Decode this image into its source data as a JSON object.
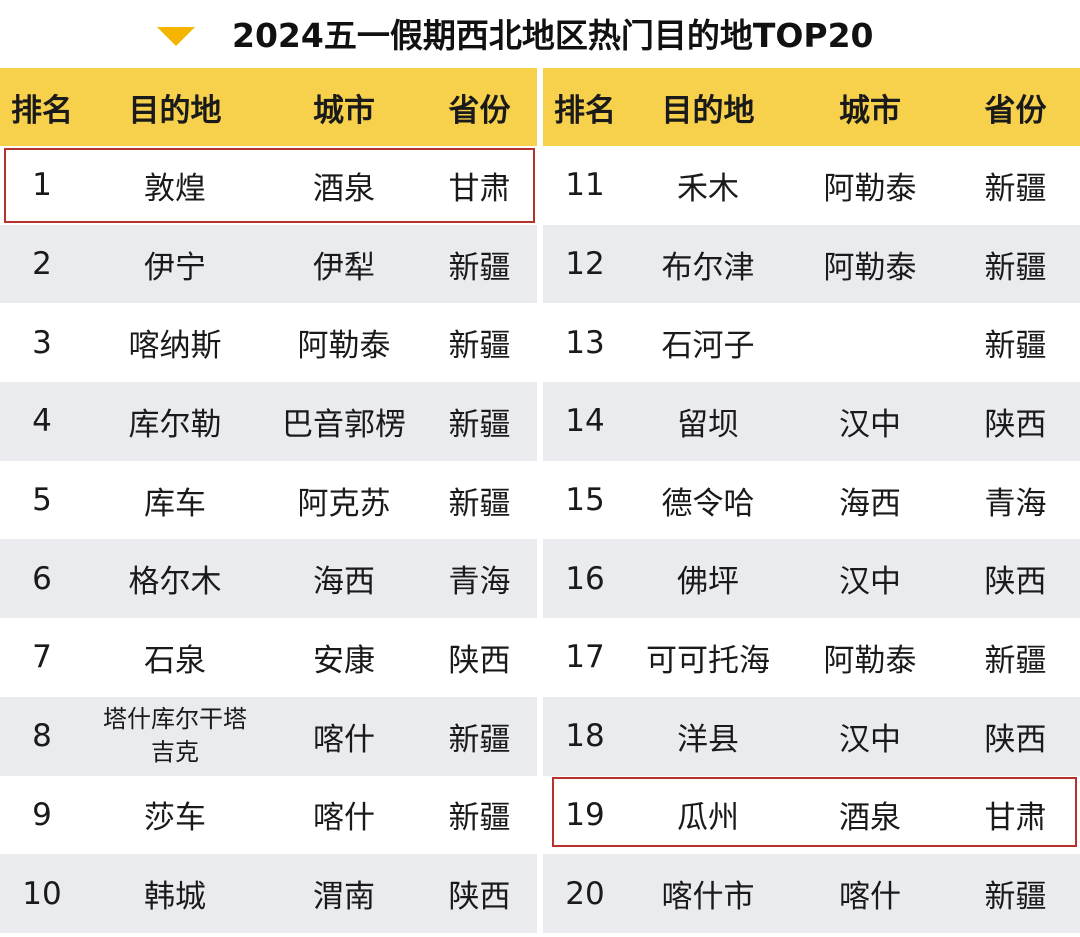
{
  "title": "2024五一假期西北地区热门目的地TOP20",
  "accent_color": "#f7d14c",
  "arrow_color": "#f4b400",
  "highlight_color": "#b5332b",
  "headers": {
    "rank": "排名",
    "destination": "目的地",
    "city": "城市",
    "province": "省份"
  },
  "left_rows": [
    {
      "rank": "1",
      "destination": "敦煌",
      "city": "酒泉",
      "province": "甘肃",
      "highlighted": true
    },
    {
      "rank": "2",
      "destination": "伊宁",
      "city": "伊犁",
      "province": "新疆"
    },
    {
      "rank": "3",
      "destination": "喀纳斯",
      "city": "阿勒泰",
      "province": "新疆"
    },
    {
      "rank": "4",
      "destination": "库尔勒",
      "city": "巴音郭楞",
      "province": "新疆"
    },
    {
      "rank": "5",
      "destination": "库车",
      "city": "阿克苏",
      "province": "新疆"
    },
    {
      "rank": "6",
      "destination": "格尔木",
      "city": "海西",
      "province": "青海"
    },
    {
      "rank": "7",
      "destination": "石泉",
      "city": "安康",
      "province": "陕西"
    },
    {
      "rank": "8",
      "destination_line1": "塔什库尔干塔",
      "destination_line2": "吉克",
      "city": "喀什",
      "province": "新疆"
    },
    {
      "rank": "9",
      "destination": "莎车",
      "city": "喀什",
      "province": "新疆"
    },
    {
      "rank": "10",
      "destination": "韩城",
      "city": "渭南",
      "province": "陕西"
    }
  ],
  "right_rows": [
    {
      "rank": "11",
      "destination": "禾木",
      "city": "阿勒泰",
      "province": "新疆"
    },
    {
      "rank": "12",
      "destination": "布尔津",
      "city": "阿勒泰",
      "province": "新疆"
    },
    {
      "rank": "13",
      "destination": "石河子",
      "city": "",
      "province": "新疆"
    },
    {
      "rank": "14",
      "destination": "留坝",
      "city": "汉中",
      "province": "陕西"
    },
    {
      "rank": "15",
      "destination": "德令哈",
      "city": "海西",
      "province": "青海"
    },
    {
      "rank": "16",
      "destination": "佛坪",
      "city": "汉中",
      "province": "陕西"
    },
    {
      "rank": "17",
      "destination": "可可托海",
      "city": "阿勒泰",
      "province": "新疆"
    },
    {
      "rank": "18",
      "destination": "洋县",
      "city": "汉中",
      "province": "陕西"
    },
    {
      "rank": "19",
      "destination": "瓜州",
      "city": "酒泉",
      "province": "甘肃",
      "highlighted": true
    },
    {
      "rank": "20",
      "destination": "喀什市",
      "city": "喀什",
      "province": "新疆"
    }
  ]
}
